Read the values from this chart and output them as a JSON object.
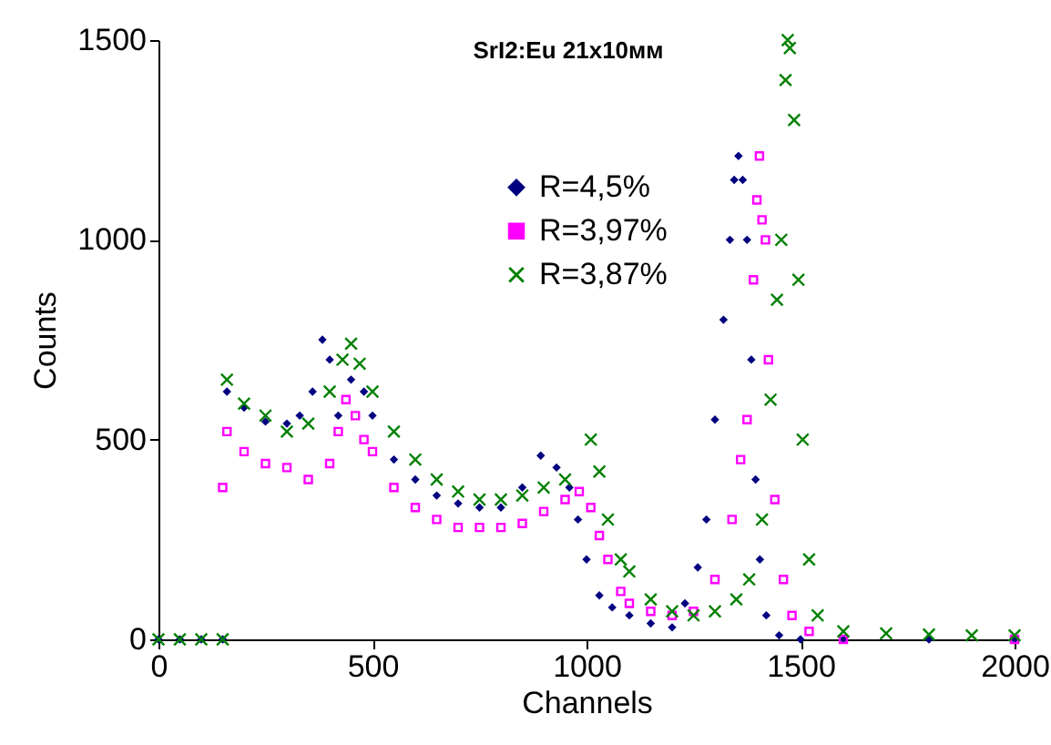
{
  "chart_data": {
    "type": "scatter",
    "title": "SrI2:Eu 21x10мм",
    "xlabel": "Channels",
    "ylabel": "Counts",
    "xlim": [
      0,
      2000
    ],
    "ylim": [
      0,
      1500
    ],
    "xticks": [
      0,
      500,
      1000,
      1500,
      2000
    ],
    "yticks": [
      0,
      500,
      1000,
      1500
    ],
    "grid": false,
    "legend": "top",
    "series": [
      {
        "name": "R=4,5%",
        "color": "#000080",
        "marker": "diamond",
        "x": [
          0,
          50,
          100,
          150,
          160,
          200,
          250,
          300,
          330,
          360,
          383,
          400,
          420,
          450,
          480,
          500,
          550,
          600,
          650,
          700,
          750,
          800,
          850,
          893,
          930,
          960,
          980,
          1000,
          1030,
          1060,
          1100,
          1150,
          1200,
          1230,
          1260,
          1280,
          1300,
          1320,
          1335,
          1345,
          1355,
          1365,
          1375,
          1385,
          1395,
          1405,
          1420,
          1450,
          1500,
          1600,
          1800,
          2000
        ],
        "values": [
          0,
          0,
          0,
          0,
          620,
          580,
          545,
          540,
          560,
          620,
          750,
          700,
          560,
          650,
          620,
          560,
          450,
          400,
          360,
          340,
          330,
          330,
          380,
          460,
          430,
          380,
          300,
          200,
          110,
          80,
          60,
          40,
          30,
          90,
          180,
          300,
          550,
          800,
          1000,
          1150,
          1210,
          1150,
          1000,
          700,
          400,
          200,
          60,
          10,
          0,
          0,
          0,
          0
        ]
      },
      {
        "name": "R=3,97%",
        "color": "#ff00ff",
        "marker": "square",
        "x": [
          150,
          160,
          200,
          250,
          300,
          350,
          400,
          420,
          438,
          460,
          480,
          500,
          550,
          600,
          650,
          700,
          750,
          800,
          850,
          900,
          950,
          983,
          1010,
          1030,
          1050,
          1080,
          1100,
          1150,
          1200,
          1250,
          1300,
          1340,
          1360,
          1375,
          1390,
          1398,
          1404,
          1410,
          1418,
          1425,
          1440,
          1460,
          1480,
          1520,
          1600,
          2000
        ],
        "values": [
          380,
          520,
          470,
          440,
          430,
          400,
          440,
          520,
          600,
          560,
          500,
          470,
          380,
          330,
          300,
          280,
          280,
          280,
          290,
          320,
          350,
          370,
          330,
          260,
          200,
          120,
          90,
          70,
          60,
          70,
          150,
          300,
          450,
          550,
          900,
          1100,
          1210,
          1050,
          1000,
          700,
          350,
          150,
          60,
          20,
          0,
          0
        ]
      },
      {
        "name": "R=3,87%",
        "color": "#008000",
        "marker": "cross",
        "x": [
          0,
          50,
          100,
          150,
          160,
          200,
          250,
          300,
          350,
          400,
          430,
          450,
          470,
          500,
          550,
          600,
          650,
          700,
          750,
          800,
          850,
          900,
          950,
          1010,
          1030,
          1050,
          1080,
          1100,
          1150,
          1200,
          1250,
          1300,
          1350,
          1380,
          1410,
          1430,
          1445,
          1455,
          1465,
          1470,
          1475,
          1485,
          1495,
          1505,
          1520,
          1540,
          1600,
          1700,
          1800,
          1900,
          2000
        ],
        "values": [
          0,
          0,
          0,
          0,
          650,
          590,
          560,
          520,
          540,
          620,
          700,
          740,
          690,
          620,
          520,
          450,
          400,
          370,
          350,
          350,
          360,
          380,
          400,
          500,
          420,
          300,
          200,
          170,
          100,
          70,
          60,
          70,
          100,
          150,
          300,
          600,
          850,
          1000,
          1400,
          1500,
          1480,
          1300,
          900,
          500,
          200,
          60,
          20,
          15,
          12,
          10,
          10
        ]
      }
    ]
  }
}
